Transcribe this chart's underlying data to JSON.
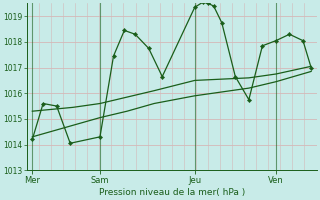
{
  "bg_color": "#c8ebe8",
  "grid_color_h": "#d4b8b8",
  "grid_color_v": "#aad0cc",
  "line_color": "#1a5e1a",
  "xlabel": "Pression niveau de la mer( hPa )",
  "ylim": [
    1013,
    1019.5
  ],
  "yticks": [
    1013,
    1014,
    1015,
    1016,
    1017,
    1018,
    1019
  ],
  "day_labels": [
    "Mer",
    "Sam",
    "Jeu",
    "Ven"
  ],
  "day_positions": [
    0.0,
    2.5,
    6.0,
    9.0
  ],
  "xmin": -0.2,
  "xmax": 10.5,
  "line1_x": [
    0.0,
    0.4,
    0.9,
    1.4,
    2.5,
    3.0,
    3.4,
    3.8,
    4.3,
    4.8,
    6.0,
    6.3,
    6.5,
    6.7,
    7.0,
    7.5,
    8.0,
    8.5,
    9.0,
    9.5,
    10.0,
    10.3
  ],
  "line1_y": [
    1014.2,
    1015.6,
    1015.5,
    1014.05,
    1014.3,
    1017.45,
    1018.45,
    1018.3,
    1017.75,
    1016.65,
    1019.35,
    1019.55,
    1019.5,
    1019.4,
    1018.75,
    1016.65,
    1015.75,
    1017.85,
    1018.05,
    1018.3,
    1018.05,
    1017.0
  ],
  "line2_x": [
    0.0,
    1.5,
    2.5,
    3.5,
    4.5,
    6.0,
    7.0,
    8.0,
    9.0,
    10.3
  ],
  "line2_y": [
    1015.3,
    1015.45,
    1015.6,
    1015.85,
    1016.1,
    1016.5,
    1016.55,
    1016.6,
    1016.75,
    1017.05
  ],
  "line3_x": [
    0.0,
    1.5,
    2.5,
    3.5,
    4.5,
    6.0,
    7.0,
    8.0,
    9.0,
    10.3
  ],
  "line3_y": [
    1014.3,
    1014.75,
    1015.05,
    1015.3,
    1015.6,
    1015.9,
    1016.05,
    1016.2,
    1016.45,
    1016.85
  ]
}
